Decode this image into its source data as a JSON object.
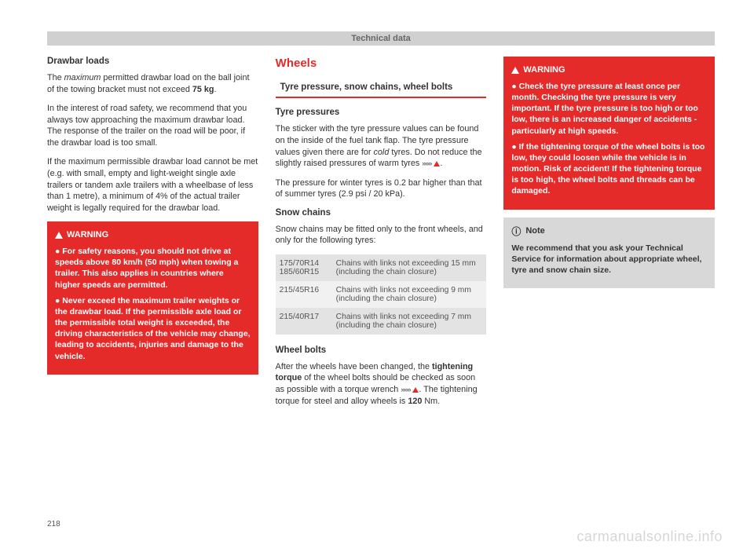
{
  "header": {
    "title": "Technical data"
  },
  "page_number": "218",
  "watermark": "carmanualsonline.info",
  "col1": {
    "h1": "Drawbar loads",
    "p1_a": "The ",
    "p1_ital": "maximum",
    "p1_b": " permitted drawbar load on the ball joint of the towing bracket must not exceed ",
    "p1_bold": "75 kg",
    "p1_c": ".",
    "p2": "In the interest of road safety, we recommend that you always tow approaching the maximum drawbar load. The response of the trailer on the road will be poor, if the drawbar load is too small.",
    "p3": "If the maximum permissible drawbar load cannot be met (e.g. with small, empty and light-weight single axle trailers or tandem axle trailers with a wheelbase of less than 1 metre), a minimum of 4% of the actual trailer weight is legally required for the drawbar load.",
    "warn_head": "WARNING",
    "warn_p1": "● For safety reasons, you should not drive at speeds above 80 km/h (50 mph) when towing a trailer. This also applies in countries where higher speeds are permitted.",
    "warn_p2": "● Never exceed the maximum trailer weights or the drawbar load. If the permissible axle load or the permissible total weight is exceeded, the driving characteristics of the vehicle may change, leading to accidents, injuries and damage to the vehicle."
  },
  "col2": {
    "title": "Wheels",
    "sub": "Tyre pressure, snow chains, wheel bolts",
    "h1": "Tyre pressures",
    "p1_a": "The sticker with the tyre pressure values can be found on the inside of the fuel tank flap. The tyre pressure values given there are for ",
    "p1_ital": "cold",
    "p1_b": " tyres. Do not reduce the slightly raised pressures of warm tyres ",
    "arrows": "»»»",
    "p1_c": ".",
    "p2": "The pressure for winter tyres is 0.2 bar higher than that of summer tyres (2.9 psi / 20 kPa).",
    "h2": "Snow chains",
    "p3": "Snow chains may be fitted only to the front wheels, and only for the following tyres:",
    "table": {
      "rows": [
        {
          "size": "175/70R14\n185/60R15",
          "text": "Chains with links not exceeding 15 mm (including the chain closure)"
        },
        {
          "size": "215/45R16",
          "text": "Chains with links not exceeding 9 mm (including the chain closure)"
        },
        {
          "size": "215/40R17",
          "text": "Chains with links not exceeding 7 mm (including the chain closure)"
        }
      ]
    },
    "h3": "Wheel bolts",
    "p4_a": "After the wheels have been changed, the ",
    "p4_bold1": "tightening torque",
    "p4_b": " of the wheel bolts should be checked as soon as possible with a torque wrench ",
    "p4_c": ". The tightening torque for steel and alloy wheels is ",
    "p4_bold2": "120",
    "p4_d": " Nm."
  },
  "col3": {
    "warn_head": "WARNING",
    "warn_p1": "● Check the tyre pressure at least once per month. Checking the tyre pressure is very important. If the tyre pressure is too high or too low, there is an increased danger of accidents - particularly at high speeds.",
    "warn_p2": "● If the tightening torque of the wheel bolts is too low, they could loosen while the vehicle is in motion. Risk of accident! If the tightening torque is too high, the wheel bolts and threads can be damaged.",
    "note_head": "Note",
    "note_p": "We recommend that you ask your Technical Service for information about appropriate wheel, tyre and snow chain size."
  }
}
